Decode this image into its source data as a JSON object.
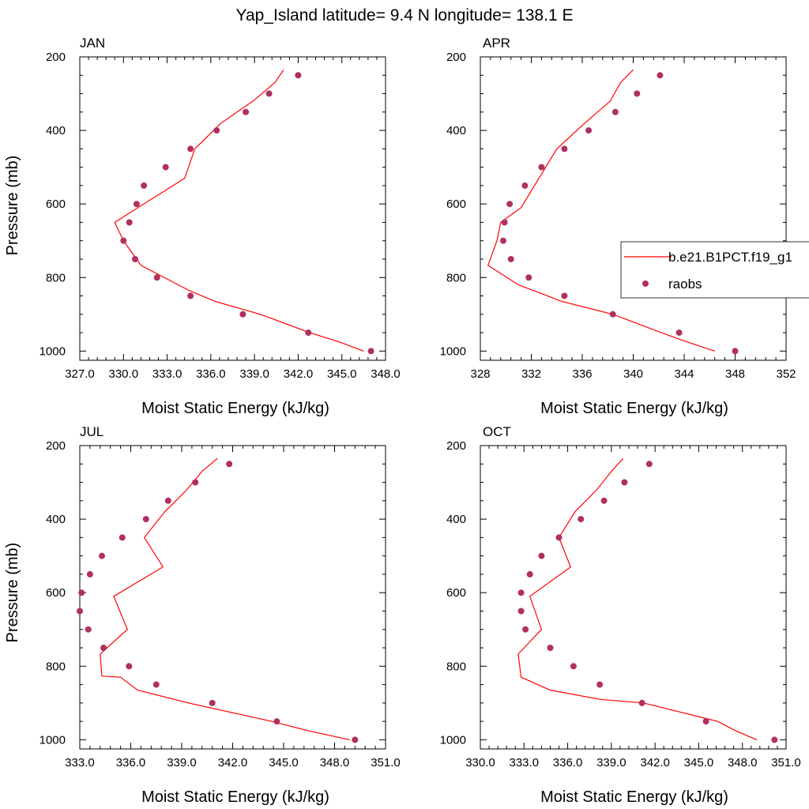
{
  "figure": {
    "title": "Yap_Island  latitude= 9.4 N longitude= 138.1 E"
  },
  "legend": {
    "model_label": "b.e21.B1PCT.f19_g1",
    "obs_label": "raobs",
    "placement": "right-middle"
  },
  "colors": {
    "model_line": "#ff0000",
    "obs_marker": "#b03060",
    "axis": "#000000"
  },
  "chart_data": [
    {
      "type": "line",
      "title": "JAN",
      "xlabel": "Moist Static Energy (kJ/kg)",
      "ylabel": "Pressure (mb)",
      "xlim": [
        327.0,
        348.0
      ],
      "ylim": [
        1025,
        200
      ],
      "xticks": [
        "327.0",
        "330.0",
        "333.0",
        "336.0",
        "339.0",
        "342.0",
        "345.0",
        "348.0"
      ],
      "yticks": [
        "200",
        "400",
        "600",
        "800",
        "1000"
      ],
      "series": [
        {
          "name": "b.e21.B1PCT.f19_g1",
          "kind": "line",
          "x": [
            346.5,
            344.8,
            342.8,
            339.4,
            336.3,
            334.5,
            331.2,
            330.0,
            329.4,
            331.0,
            334.2,
            334.9,
            336.7,
            338.9,
            340.4,
            341.0
          ],
          "y": [
            1000,
            975,
            950,
            900,
            865,
            835,
            767,
            700,
            650,
            610,
            530,
            450,
            380,
            320,
            270,
            235
          ]
        },
        {
          "name": "raobs",
          "kind": "scatter",
          "x": [
            347.0,
            342.7,
            338.2,
            334.6,
            332.3,
            330.8,
            330.0,
            330.4,
            330.9,
            331.4,
            332.9,
            334.6,
            336.4,
            338.4,
            340.0,
            342.0
          ],
          "y": [
            1000,
            950,
            900,
            850,
            800,
            750,
            700,
            650,
            600,
            550,
            500,
            450,
            400,
            350,
            300,
            250
          ]
        }
      ]
    },
    {
      "type": "line",
      "title": "APR",
      "xlabel": "Moist Static Energy (kJ/kg)",
      "ylabel": "",
      "xlim": [
        328,
        352
      ],
      "ylim": [
        1025,
        200
      ],
      "xticks": [
        "328",
        "332",
        "336",
        "340",
        "344",
        "348",
        "352"
      ],
      "yticks": [
        "200",
        "400",
        "600",
        "800",
        "1000"
      ],
      "series": [
        {
          "name": "b.e21.B1PCT.f19_g1",
          "kind": "line",
          "x": [
            346.4,
            344.2,
            342.2,
            338.4,
            334.4,
            331.0,
            328.6,
            329.3,
            329.6,
            331.2,
            332.6,
            334.0,
            336.2,
            338.2,
            339.0,
            340.0
          ],
          "y": [
            1000,
            975,
            950,
            900,
            865,
            820,
            767,
            700,
            650,
            610,
            530,
            450,
            380,
            320,
            270,
            235
          ]
        },
        {
          "name": "raobs",
          "kind": "scatter",
          "x": [
            348.0,
            343.6,
            338.4,
            334.6,
            331.8,
            330.4,
            329.8,
            329.9,
            330.3,
            331.5,
            332.8,
            334.6,
            336.5,
            338.6,
            340.3,
            342.1
          ],
          "y": [
            1000,
            950,
            900,
            850,
            800,
            750,
            700,
            650,
            600,
            550,
            500,
            450,
            400,
            350,
            300,
            250
          ]
        }
      ]
    },
    {
      "type": "line",
      "title": "JUL",
      "xlabel": "Moist Static Energy (kJ/kg)",
      "ylabel": "Pressure (mb)",
      "xlim": [
        333.0,
        351.0
      ],
      "ylim": [
        1025,
        200
      ],
      "xticks": [
        "333.0",
        "336.0",
        "339.0",
        "342.0",
        "345.0",
        "348.0",
        "351.0"
      ],
      "yticks": [
        "200",
        "400",
        "600",
        "800",
        "1000"
      ],
      "series": [
        {
          "name": "b.e21.B1PCT.f19_g1",
          "kind": "line",
          "x": [
            348.9,
            346.4,
            344.3,
            339.4,
            336.4,
            335.4,
            334.3,
            334.2,
            335.8,
            335.0,
            337.9,
            336.8,
            338.0,
            339.3,
            340.2,
            341.1
          ],
          "y": [
            1000,
            975,
            950,
            900,
            865,
            830,
            827,
            767,
            700,
            610,
            530,
            450,
            380,
            320,
            270,
            235
          ]
        },
        {
          "name": "raobs",
          "kind": "scatter",
          "x": [
            349.2,
            344.6,
            340.8,
            337.5,
            335.9,
            334.4,
            333.5,
            333.0,
            333.1,
            333.6,
            334.3,
            335.5,
            336.9,
            338.2,
            339.8,
            341.8
          ],
          "y": [
            1000,
            950,
            900,
            850,
            800,
            750,
            700,
            650,
            600,
            550,
            500,
            450,
            400,
            350,
            300,
            250
          ]
        }
      ]
    },
    {
      "type": "line",
      "title": "OCT",
      "xlabel": "Moist Static Energy (kJ/kg)",
      "ylabel": "",
      "xlim": [
        330.0,
        351.0
      ],
      "ylim": [
        1025,
        200
      ],
      "xticks": [
        "330.0",
        "333.0",
        "336.0",
        "339.0",
        "342.0",
        "345.0",
        "348.0",
        "351.0"
      ],
      "yticks": [
        "200",
        "400",
        "600",
        "800",
        "1000"
      ],
      "series": [
        {
          "name": "b.e21.B1PCT.f19_g1",
          "kind": "line",
          "x": [
            349.0,
            347.5,
            346.3,
            341.2,
            338.2,
            334.8,
            332.8,
            332.6,
            334.2,
            333.4,
            336.2,
            335.4,
            336.5,
            338.0,
            339.0,
            339.8
          ],
          "y": [
            1000,
            975,
            950,
            900,
            890,
            865,
            830,
            767,
            700,
            610,
            530,
            450,
            380,
            320,
            270,
            235
          ]
        },
        {
          "name": "raobs",
          "kind": "scatter",
          "x": [
            350.2,
            345.5,
            341.1,
            338.2,
            336.4,
            334.8,
            333.1,
            332.8,
            332.8,
            333.4,
            334.2,
            335.4,
            336.9,
            338.5,
            339.9,
            341.6
          ],
          "y": [
            1000,
            950,
            900,
            850,
            800,
            750,
            700,
            650,
            600,
            550,
            500,
            450,
            400,
            350,
            300,
            250
          ]
        }
      ]
    }
  ]
}
